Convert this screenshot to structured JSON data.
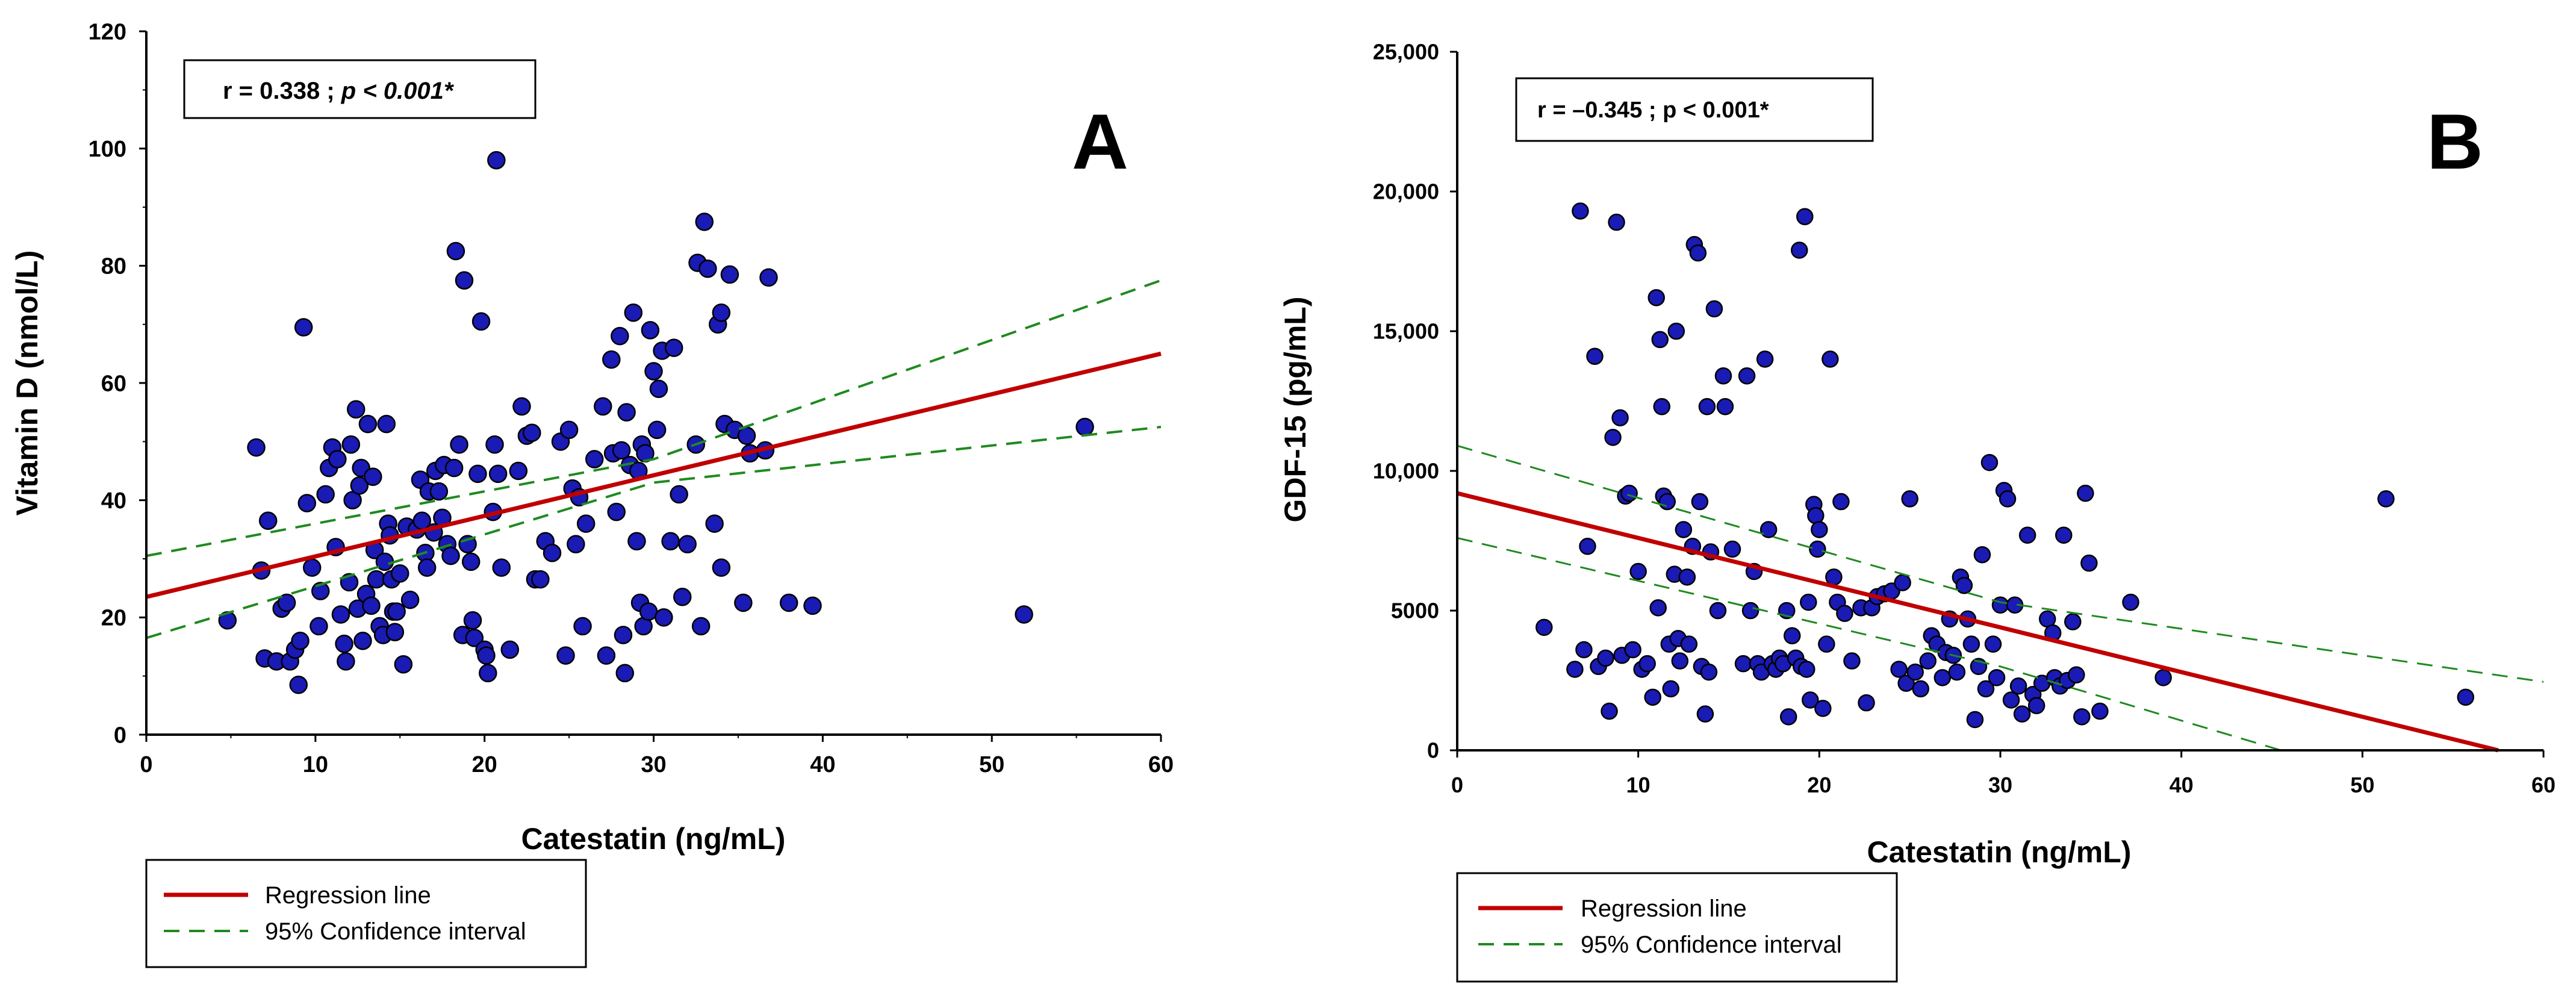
{
  "chart_data": [
    {
      "panel": "A",
      "type": "scatter",
      "stat_r": "r = 0.338 ; ",
      "stat_p": "p < 0.001*",
      "xlabel": "Catestatin (ng/mL)",
      "ylabel": "Vitamin D (nmol/L)",
      "xlim": [
        0,
        60
      ],
      "ylim": [
        0,
        120
      ],
      "xticks": [
        "0",
        "10",
        "20",
        "30",
        "40",
        "50",
        "60"
      ],
      "yticks": [
        "0",
        "20",
        "40",
        "60",
        "80",
        "100",
        "120"
      ],
      "regression": {
        "x0": 0,
        "y0": 23.5,
        "x1": 60,
        "y1": 65
      },
      "ci_upper": [
        [
          0,
          30.5
        ],
        [
          30,
          47
        ],
        [
          60,
          77.5
        ]
      ],
      "ci_lower": [
        [
          0,
          16.5
        ],
        [
          30,
          43
        ],
        [
          60,
          52.5
        ]
      ],
      "legend": {
        "regression_label": "Regression line",
        "ci_label": "95% Confidence interval"
      },
      "colors": {
        "regression": "#c00000",
        "ci": "#1f8a1f",
        "points": "#1a1ab4"
      },
      "points": [
        [
          4.8,
          19.5
        ],
        [
          6.5,
          49
        ],
        [
          6.8,
          28
        ],
        [
          7,
          13
        ],
        [
          7.2,
          36.5
        ],
        [
          7.7,
          12.5
        ],
        [
          8,
          21.5
        ],
        [
          8.3,
          22.5
        ],
        [
          8.5,
          12.5
        ],
        [
          8.8,
          14.5
        ],
        [
          9,
          8.5
        ],
        [
          9.1,
          16
        ],
        [
          9.3,
          69.5
        ],
        [
          9.5,
          39.5
        ],
        [
          9.8,
          28.5
        ],
        [
          10.2,
          18.5
        ],
        [
          10.3,
          24.5
        ],
        [
          10.6,
          41
        ],
        [
          10.8,
          45.5
        ],
        [
          11,
          49
        ],
        [
          11.2,
          32
        ],
        [
          11.3,
          47
        ],
        [
          11.5,
          20.5
        ],
        [
          11.7,
          15.5
        ],
        [
          11.8,
          12.5
        ],
        [
          12,
          26
        ],
        [
          12.1,
          49.5
        ],
        [
          12.2,
          40
        ],
        [
          12.4,
          55.5
        ],
        [
          12.5,
          21.5
        ],
        [
          12.6,
          42.5
        ],
        [
          12.7,
          45.5
        ],
        [
          12.8,
          16
        ],
        [
          13,
          24
        ],
        [
          13.1,
          53
        ],
        [
          13.3,
          22
        ],
        [
          13.4,
          44
        ],
        [
          13.5,
          31.5
        ],
        [
          13.6,
          26.5
        ],
        [
          13.8,
          18.5
        ],
        [
          14,
          17
        ],
        [
          14.1,
          29.5
        ],
        [
          14.2,
          53
        ],
        [
          14.3,
          36
        ],
        [
          14.4,
          34
        ],
        [
          14.5,
          26.5
        ],
        [
          14.6,
          21
        ],
        [
          14.7,
          17.5
        ],
        [
          14.8,
          21
        ],
        [
          15,
          27.5
        ],
        [
          15.2,
          12
        ],
        [
          15.4,
          35.5
        ],
        [
          15.6,
          23
        ],
        [
          16,
          35
        ],
        [
          16.2,
          43.5
        ],
        [
          16.3,
          36.5
        ],
        [
          16.5,
          31
        ],
        [
          16.6,
          28.5
        ],
        [
          16.7,
          41.5
        ],
        [
          17,
          34.5
        ],
        [
          17.1,
          45
        ],
        [
          17.3,
          41.5
        ],
        [
          17.5,
          37
        ],
        [
          17.6,
          46
        ],
        [
          17.8,
          32.5
        ],
        [
          18,
          30.5
        ],
        [
          18.2,
          45.5
        ],
        [
          18.3,
          82.5
        ],
        [
          18.5,
          49.5
        ],
        [
          18.7,
          17
        ],
        [
          18.8,
          77.5
        ],
        [
          19,
          32.5
        ],
        [
          19.2,
          29.5
        ],
        [
          19.3,
          19.5
        ],
        [
          19.4,
          16.5
        ],
        [
          19.6,
          44.5
        ],
        [
          19.8,
          70.5
        ],
        [
          20,
          14.5
        ],
        [
          20.1,
          13.5
        ],
        [
          20.2,
          10.5
        ],
        [
          20.5,
          38
        ],
        [
          20.6,
          49.5
        ],
        [
          20.7,
          98
        ],
        [
          20.8,
          44.5
        ],
        [
          21,
          28.5
        ],
        [
          21.5,
          14.5
        ],
        [
          22,
          45
        ],
        [
          22.2,
          56
        ],
        [
          22.5,
          51
        ],
        [
          22.8,
          51.5
        ],
        [
          23,
          26.5
        ],
        [
          23.3,
          26.5
        ],
        [
          23.6,
          33
        ],
        [
          24,
          31
        ],
        [
          24.5,
          50
        ],
        [
          24.8,
          13.5
        ],
        [
          25,
          52
        ],
        [
          25.2,
          42
        ],
        [
          25.4,
          32.5
        ],
        [
          25.6,
          40.5
        ],
        [
          25.8,
          18.5
        ],
        [
          26,
          36
        ],
        [
          26.5,
          47
        ],
        [
          27,
          56
        ],
        [
          27.2,
          13.5
        ],
        [
          27.5,
          64
        ],
        [
          27.6,
          48
        ],
        [
          27.8,
          38
        ],
        [
          28,
          68
        ],
        [
          28.1,
          48.5
        ],
        [
          28.2,
          17
        ],
        [
          28.3,
          10.5
        ],
        [
          28.4,
          55
        ],
        [
          28.6,
          46
        ],
        [
          28.8,
          72
        ],
        [
          29,
          33
        ],
        [
          29.1,
          45
        ],
        [
          29.2,
          22.5
        ],
        [
          29.3,
          49.5
        ],
        [
          29.4,
          18.5
        ],
        [
          29.5,
          48
        ],
        [
          29.7,
          21
        ],
        [
          29.8,
          69
        ],
        [
          30,
          62
        ],
        [
          30.2,
          52
        ],
        [
          30.3,
          59
        ],
        [
          30.5,
          65.5
        ],
        [
          30.6,
          20
        ],
        [
          31,
          33
        ],
        [
          31.2,
          66
        ],
        [
          31.5,
          41
        ],
        [
          31.7,
          23.5
        ],
        [
          32,
          32.5
        ],
        [
          32.5,
          49.5
        ],
        [
          32.6,
          80.5
        ],
        [
          32.8,
          18.5
        ],
        [
          33,
          87.5
        ],
        [
          33.2,
          79.5
        ],
        [
          33.6,
          36
        ],
        [
          33.8,
          70
        ],
        [
          34,
          28.5
        ],
        [
          34,
          72
        ],
        [
          34.2,
          53
        ],
        [
          34.5,
          78.5
        ],
        [
          34.8,
          52
        ],
        [
          35.3,
          22.5
        ],
        [
          35.5,
          51
        ],
        [
          35.7,
          48
        ],
        [
          36.6,
          48.5
        ],
        [
          36.8,
          78
        ],
        [
          38,
          22.5
        ],
        [
          39.4,
          22
        ],
        [
          51.9,
          20.5
        ],
        [
          55.5,
          52.5
        ]
      ]
    },
    {
      "panel": "B",
      "type": "scatter",
      "stat_r": "r = –0.345 ; ",
      "stat_p": "p < 0.001*",
      "xlabel": "Catestatin (ng/mL)",
      "ylabel": "GDF-15 (pg/mL)",
      "xlim": [
        0,
        60
      ],
      "ylim": [
        0,
        25000
      ],
      "xticks": [
        "0",
        "10",
        "20",
        "30",
        "40",
        "50",
        "60"
      ],
      "yticks": [
        "0",
        "5000",
        "10,000",
        "15,000",
        "20,000",
        "25,000"
      ],
      "regression": {
        "x0": 0,
        "y0": 9200,
        "x1": 57.5,
        "y1": 0
      },
      "ci_upper": [
        [
          0,
          10900
        ],
        [
          30,
          5300
        ],
        [
          60,
          2450
        ]
      ],
      "ci_lower": [
        [
          0,
          7600
        ],
        [
          30,
          3000
        ],
        [
          45.5,
          0
        ]
      ],
      "legend": {
        "regression_label": "Regression line",
        "ci_label": "95% Confidence interval"
      },
      "colors": {
        "regression": "#c00000",
        "ci": "#1f8a1f",
        "points": "#1a1ab4"
      },
      "points": [
        [
          4.8,
          4400
        ],
        [
          6.5,
          2900
        ],
        [
          6.8,
          19300
        ],
        [
          7,
          3600
        ],
        [
          7.2,
          7300
        ],
        [
          7.6,
          14100
        ],
        [
          7.8,
          3000
        ],
        [
          8.2,
          3300
        ],
        [
          8.4,
          1400
        ],
        [
          8.6,
          11200
        ],
        [
          8.8,
          18900
        ],
        [
          9,
          11900
        ],
        [
          9.1,
          3400
        ],
        [
          9.3,
          9100
        ],
        [
          9.5,
          9200
        ],
        [
          9.7,
          3600
        ],
        [
          10,
          6400
        ],
        [
          10.2,
          2900
        ],
        [
          10.5,
          3100
        ],
        [
          10.8,
          1900
        ],
        [
          11,
          16200
        ],
        [
          11.1,
          5100
        ],
        [
          11.2,
          14700
        ],
        [
          11.3,
          12300
        ],
        [
          11.4,
          9100
        ],
        [
          11.6,
          8900
        ],
        [
          11.7,
          3800
        ],
        [
          11.8,
          2200
        ],
        [
          12,
          6300
        ],
        [
          12.1,
          15000
        ],
        [
          12.2,
          4000
        ],
        [
          12.3,
          3200
        ],
        [
          12.5,
          7900
        ],
        [
          12.7,
          6200
        ],
        [
          12.8,
          3800
        ],
        [
          13,
          7300
        ],
        [
          13.1,
          18100
        ],
        [
          13.3,
          17800
        ],
        [
          13.4,
          8900
        ],
        [
          13.5,
          3000
        ],
        [
          13.7,
          1300
        ],
        [
          13.8,
          12300
        ],
        [
          13.9,
          2800
        ],
        [
          14,
          7100
        ],
        [
          14.2,
          15800
        ],
        [
          14.4,
          5000
        ],
        [
          14.7,
          13400
        ],
        [
          14.8,
          12300
        ],
        [
          15.2,
          7200
        ],
        [
          15.8,
          3100
        ],
        [
          16,
          13400
        ],
        [
          16.2,
          5000
        ],
        [
          16.4,
          6400
        ],
        [
          16.6,
          3100
        ],
        [
          16.8,
          2800
        ],
        [
          17,
          14000
        ],
        [
          17.2,
          7900
        ],
        [
          17.4,
          3100
        ],
        [
          17.6,
          2900
        ],
        [
          17.8,
          3300
        ],
        [
          18,
          3100
        ],
        [
          18.2,
          5000
        ],
        [
          18.3,
          1200
        ],
        [
          18.5,
          4100
        ],
        [
          18.7,
          3300
        ],
        [
          18.9,
          17900
        ],
        [
          19,
          3000
        ],
        [
          19.2,
          19100
        ],
        [
          19.3,
          2900
        ],
        [
          19.4,
          5300
        ],
        [
          19.5,
          1800
        ],
        [
          19.7,
          8800
        ],
        [
          19.8,
          8400
        ],
        [
          19.9,
          7200
        ],
        [
          20,
          7900
        ],
        [
          20.2,
          1500
        ],
        [
          20.4,
          3800
        ],
        [
          20.6,
          14000
        ],
        [
          20.8,
          6200
        ],
        [
          21,
          5300
        ],
        [
          21.2,
          8900
        ],
        [
          21.4,
          4900
        ],
        [
          21.8,
          3200
        ],
        [
          22.3,
          5100
        ],
        [
          22.6,
          1700
        ],
        [
          22.9,
          5100
        ],
        [
          23.2,
          5500
        ],
        [
          23.6,
          5600
        ],
        [
          24,
          5700
        ],
        [
          24.4,
          2900
        ],
        [
          24.6,
          6000
        ],
        [
          24.8,
          2400
        ],
        [
          25,
          9000
        ],
        [
          25.3,
          2800
        ],
        [
          25.6,
          2200
        ],
        [
          26,
          3200
        ],
        [
          26.2,
          4100
        ],
        [
          26.5,
          3800
        ],
        [
          26.8,
          2600
        ],
        [
          27,
          3500
        ],
        [
          27.2,
          4700
        ],
        [
          27.4,
          3400
        ],
        [
          27.6,
          2800
        ],
        [
          27.8,
          6200
        ],
        [
          28,
          5900
        ],
        [
          28.2,
          4700
        ],
        [
          28.4,
          3800
        ],
        [
          28.6,
          1100
        ],
        [
          28.8,
          3000
        ],
        [
          29,
          7000
        ],
        [
          29.2,
          2200
        ],
        [
          29.4,
          10300
        ],
        [
          29.6,
          3800
        ],
        [
          29.8,
          2600
        ],
        [
          30,
          5200
        ],
        [
          30.2,
          9300
        ],
        [
          30.4,
          9000
        ],
        [
          30.6,
          1800
        ],
        [
          30.8,
          5200
        ],
        [
          31,
          2300
        ],
        [
          31.2,
          1300
        ],
        [
          31.5,
          7700
        ],
        [
          31.8,
          2000
        ],
        [
          32,
          1600
        ],
        [
          32.3,
          2400
        ],
        [
          32.6,
          4700
        ],
        [
          32.9,
          4200
        ],
        [
          33,
          2600
        ],
        [
          33.3,
          2300
        ],
        [
          33.5,
          7700
        ],
        [
          33.7,
          2500
        ],
        [
          34,
          4600
        ],
        [
          34.2,
          2700
        ],
        [
          34.5,
          1200
        ],
        [
          34.7,
          9200
        ],
        [
          34.9,
          6700
        ],
        [
          35.5,
          1400
        ],
        [
          37.2,
          5300
        ],
        [
          39,
          2600
        ],
        [
          51.3,
          9000
        ],
        [
          55.7,
          1900
        ]
      ]
    }
  ]
}
